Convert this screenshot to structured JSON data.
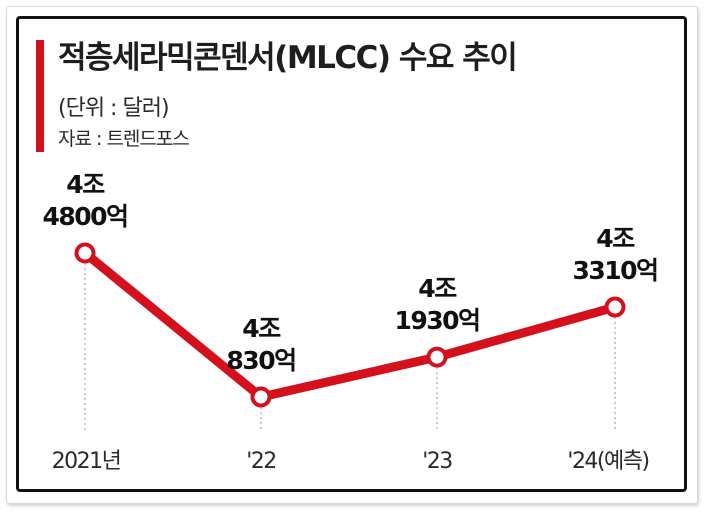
{
  "header": {
    "title": "적층세라믹콘덴서(MLCC) 수요 추이",
    "unit": "(단위 : 달러)",
    "source": "자료 : 트렌드포스"
  },
  "colors": {
    "accent": "#d4101c",
    "line": "#d4101c",
    "text": "#1e1e1e"
  },
  "chart_data": {
    "type": "line",
    "title": "적층세라믹콘덴서(MLCC) 수요 추이",
    "unit": "(단위 : 달러)",
    "categories": [
      "2021년",
      "'22",
      "'23",
      "'24(예측)"
    ],
    "values": [
      4480000000000,
      4083000000000,
      4193000000000,
      4331000000000
    ],
    "data_labels": [
      [
        "4조",
        "4800억"
      ],
      [
        "4조",
        "830억"
      ],
      [
        "4조",
        "1930억"
      ],
      [
        "4조",
        "3310억"
      ]
    ],
    "ylim": [
      4000000000000,
      4600000000000
    ],
    "grid": false,
    "legend": "none",
    "markers": "hollow-circle",
    "drop_lines": "dotted"
  }
}
